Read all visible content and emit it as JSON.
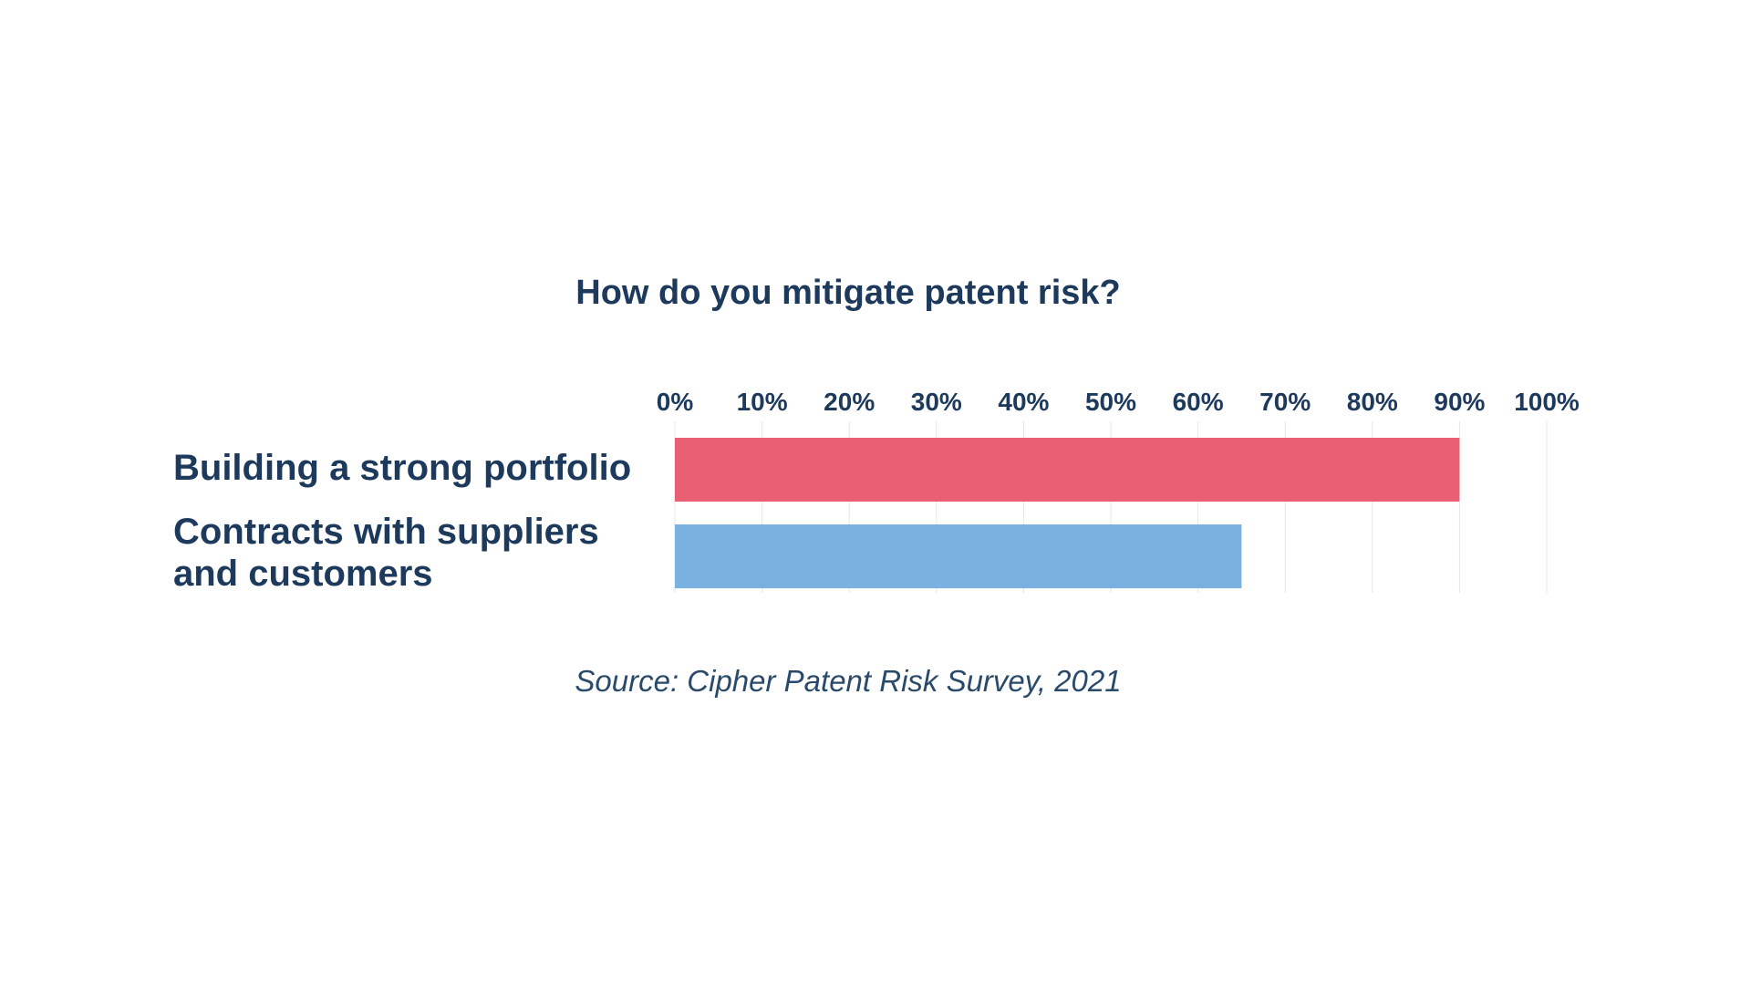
{
  "chart_data": {
    "type": "bar",
    "orientation": "horizontal",
    "title": "How do you mitigate patent risk?",
    "categories": [
      "Building a strong portfolio",
      "Contracts with suppliers and customers"
    ],
    "category_lines": [
      [
        "Building a strong portfolio"
      ],
      [
        "Contracts with suppliers",
        "and customers"
      ]
    ],
    "values": [
      90,
      65
    ],
    "bar_colors": [
      "#e95f73",
      "#79b1e0"
    ],
    "xlim": [
      0,
      100
    ],
    "x_ticks": [
      "0%",
      "10%",
      "20%",
      "30%",
      "40%",
      "50%",
      "60%",
      "70%",
      "80%",
      "90%",
      "100%"
    ],
    "x_tick_values": [
      0,
      10,
      20,
      30,
      40,
      50,
      60,
      70,
      80,
      90,
      100
    ],
    "x_axis_position": "top",
    "grid": true,
    "source": "Source: Cipher Patent Risk Survey, 2021"
  },
  "colors": {
    "text": "#1d3a5c",
    "grid": "#e6e6e6"
  }
}
